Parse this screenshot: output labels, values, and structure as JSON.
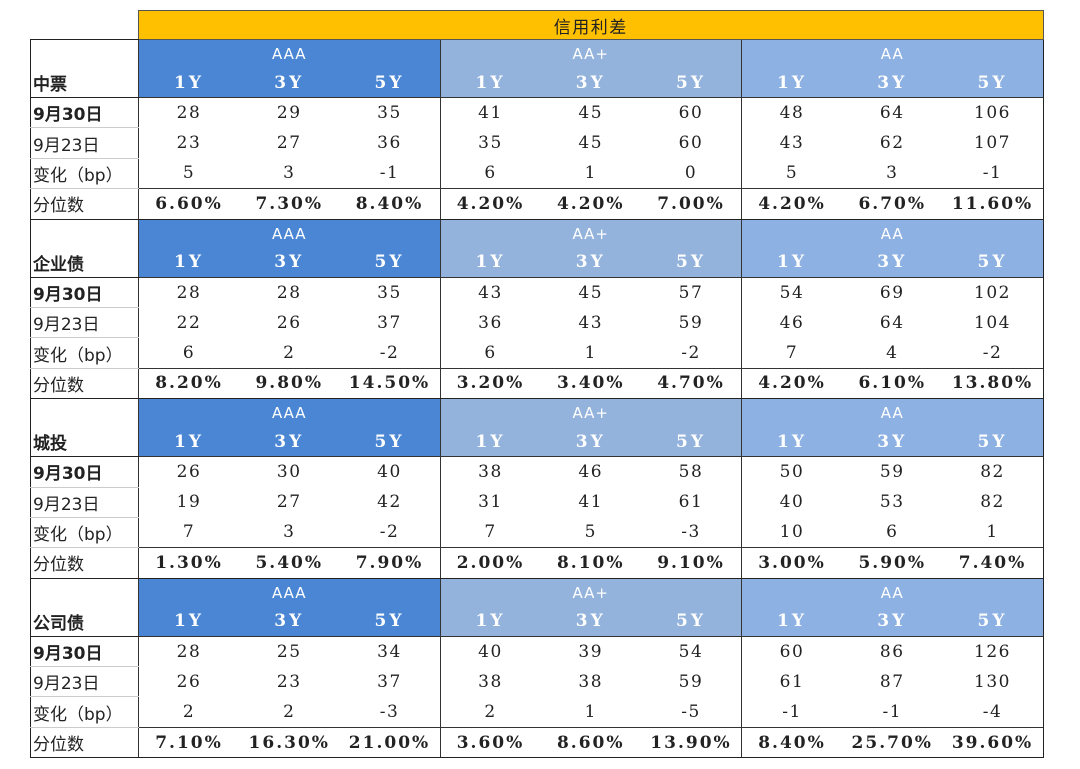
{
  "title": "信用利差",
  "grades": [
    "AAA",
    "AA+",
    "AA"
  ],
  "tenors": [
    "1Y",
    "3Y",
    "5Y"
  ],
  "row_labels": {
    "date1": "9月30日",
    "date2": "9月23日",
    "change": "变化（bp）",
    "percentile": "分位数"
  },
  "sections": [
    {
      "name": "中票",
      "date1": [
        "28",
        "29",
        "35",
        "41",
        "45",
        "60",
        "48",
        "64",
        "106"
      ],
      "date2": [
        "23",
        "27",
        "36",
        "35",
        "45",
        "60",
        "43",
        "62",
        "107"
      ],
      "change": [
        "5",
        "3",
        "-1",
        "6",
        "1",
        "0",
        "5",
        "3",
        "-1"
      ],
      "percentile": [
        "6.60%",
        "7.30%",
        "8.40%",
        "4.20%",
        "4.20%",
        "7.00%",
        "4.20%",
        "6.70%",
        "11.60%"
      ]
    },
    {
      "name": "企业债",
      "date1": [
        "28",
        "28",
        "35",
        "43",
        "45",
        "57",
        "54",
        "69",
        "102"
      ],
      "date2": [
        "22",
        "26",
        "37",
        "36",
        "43",
        "59",
        "46",
        "64",
        "104"
      ],
      "change": [
        "6",
        "2",
        "-2",
        "6",
        "1",
        "-2",
        "7",
        "4",
        "-2"
      ],
      "percentile": [
        "8.20%",
        "9.80%",
        "14.50%",
        "3.20%",
        "3.40%",
        "4.70%",
        "4.20%",
        "6.10%",
        "13.80%"
      ]
    },
    {
      "name": "城投",
      "date1": [
        "26",
        "30",
        "40",
        "38",
        "46",
        "58",
        "50",
        "59",
        "82"
      ],
      "date2": [
        "19",
        "27",
        "42",
        "31",
        "41",
        "61",
        "40",
        "53",
        "82"
      ],
      "change": [
        "7",
        "3",
        "-2",
        "7",
        "5",
        "-3",
        "10",
        "6",
        "1"
      ],
      "percentile": [
        "1.30%",
        "5.40%",
        "7.90%",
        "2.00%",
        "8.10%",
        "9.10%",
        "3.00%",
        "5.90%",
        "7.40%"
      ]
    },
    {
      "name": "公司债",
      "date1": [
        "28",
        "25",
        "34",
        "40",
        "39",
        "54",
        "60",
        "86",
        "126"
      ],
      "date2": [
        "26",
        "23",
        "37",
        "38",
        "38",
        "59",
        "61",
        "87",
        "130"
      ],
      "change": [
        "2",
        "2",
        "-3",
        "2",
        "1",
        "-5",
        "-1",
        "-1",
        "-4"
      ],
      "percentile": [
        "7.10%",
        "16.30%",
        "21.00%",
        "3.60%",
        "8.60%",
        "13.90%",
        "8.40%",
        "25.70%",
        "39.60%"
      ]
    }
  ],
  "colors": {
    "title_bg": "#ffc000",
    "aaa_bg": "#4a86d4",
    "aap_bg": "#93b3dc",
    "aa_bg": "#8db1e2",
    "header_text": "#ffffff"
  }
}
